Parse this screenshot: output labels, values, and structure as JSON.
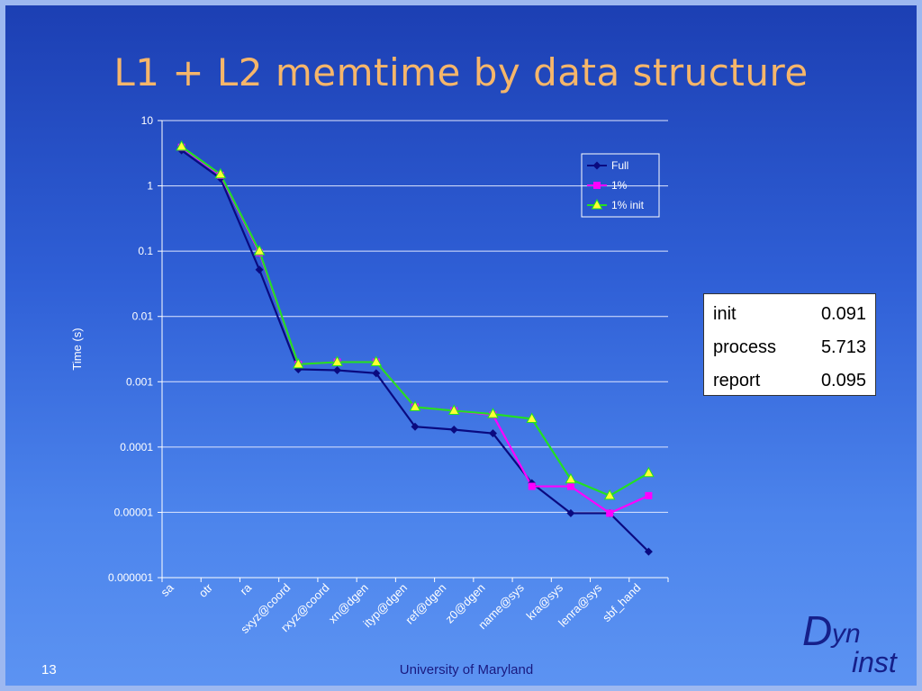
{
  "slide": {
    "title": "L1 + L2 memtime by data structure",
    "number": "13",
    "footer": "University of Maryland",
    "logo": {
      "d": "D",
      "yn": "yn",
      "inst": "inst"
    }
  },
  "stats_table": {
    "rows": [
      {
        "label": "init",
        "value": "0.091"
      },
      {
        "label": "process",
        "value": "5.713"
      },
      {
        "label": "report",
        "value": "0.095"
      }
    ]
  },
  "chart_data": {
    "type": "line",
    "ylabel": "Time (s)",
    "xlabel": "",
    "yscale": "log",
    "ylim": [
      1e-06,
      10
    ],
    "yticks": [
      "10",
      "1",
      "0.1",
      "0.01",
      "0.001",
      "0.0001",
      "0.00001",
      "0.000001"
    ],
    "grid": true,
    "legend_position": "top-right",
    "categories": [
      "sa",
      "otr",
      "ra",
      "sxyz@coord",
      "rxyz@coord",
      "xn@dgen",
      "ityp@dgen",
      "ref@dgen",
      "z0@dgen",
      "name@sys",
      "kra@sys",
      "lenra@sys",
      "sbf_hand"
    ],
    "series": [
      {
        "name": "Full",
        "color": "#0a0a80",
        "marker": "diamond",
        "values": [
          3.5,
          1.3,
          0.052,
          0.00155,
          0.0015,
          0.00135,
          0.000205,
          0.000185,
          0.000162,
          2.8e-05,
          9.7e-06,
          9.7e-06,
          2.5e-06
        ]
      },
      {
        "name": "1%",
        "color": "#ff00ff",
        "marker": "square",
        "values": [
          3.9,
          1.45,
          0.095,
          0.00185,
          0.002,
          0.002,
          0.00041,
          0.00036,
          0.00031,
          2.5e-05,
          2.5e-05,
          9.7e-06,
          1.8e-05
        ]
      },
      {
        "name": "1% init",
        "color": "#22e022",
        "marker": "triangle",
        "values": [
          4.0,
          1.5,
          0.1,
          0.00185,
          0.002,
          0.002,
          0.00041,
          0.00036,
          0.00032,
          0.00027,
          3.2e-05,
          1.8e-05,
          4e-05
        ]
      }
    ]
  }
}
